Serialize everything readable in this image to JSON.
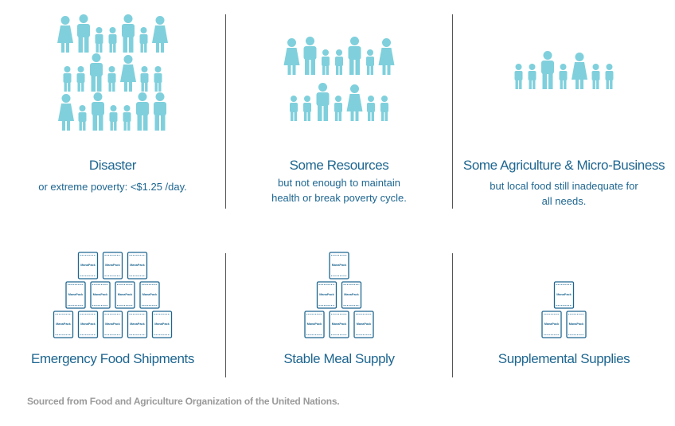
{
  "colors": {
    "people": "#7fd0dc",
    "text": "#1e6690",
    "divider": "#555555",
    "source": "#9a9a9a"
  },
  "icons": {
    "person": "person-icon",
    "food_pack": "food-pack-icon"
  },
  "top_row": [
    {
      "title": "Disaster",
      "subtitle_lines": [
        "or extreme poverty: <$1.25 /day."
      ]
    },
    {
      "title": "Some Resources",
      "subtitle_lines": [
        "but not enough to maintain",
        "health or break poverty cycle."
      ]
    },
    {
      "title": "Some Agriculture & Micro-Business",
      "subtitle_lines": [
        "but local food still inadequate for",
        "all needs."
      ]
    }
  ],
  "bottom_row": [
    {
      "title": "Emergency Food Shipments",
      "pack_rows": [
        3,
        4,
        5
      ]
    },
    {
      "title": "Stable Meal Supply",
      "pack_rows": [
        1,
        2,
        3
      ]
    },
    {
      "title": "Supplemental Supplies",
      "pack_rows": [
        1,
        2
      ]
    }
  ],
  "people_rows": [
    [
      "F",
      "M",
      "K",
      "K",
      "M",
      "K",
      "F"
    ],
    [
      "K",
      "K",
      "M",
      "K",
      "F",
      "K",
      "K"
    ],
    [
      "F",
      "K",
      "M",
      "K",
      "K",
      "M",
      "M"
    ],
    [
      "F",
      "M",
      "K",
      "K",
      "M",
      "K",
      "F"
    ],
    [
      "K",
      "K",
      "M",
      "K",
      "F",
      "K",
      "K"
    ],
    [
      "K",
      "K",
      "M",
      "K",
      "F",
      "K",
      "K"
    ]
  ],
  "pack_label": "ManaPack",
  "source": "Sourced from Food and Agriculture Organization of the United Nations."
}
